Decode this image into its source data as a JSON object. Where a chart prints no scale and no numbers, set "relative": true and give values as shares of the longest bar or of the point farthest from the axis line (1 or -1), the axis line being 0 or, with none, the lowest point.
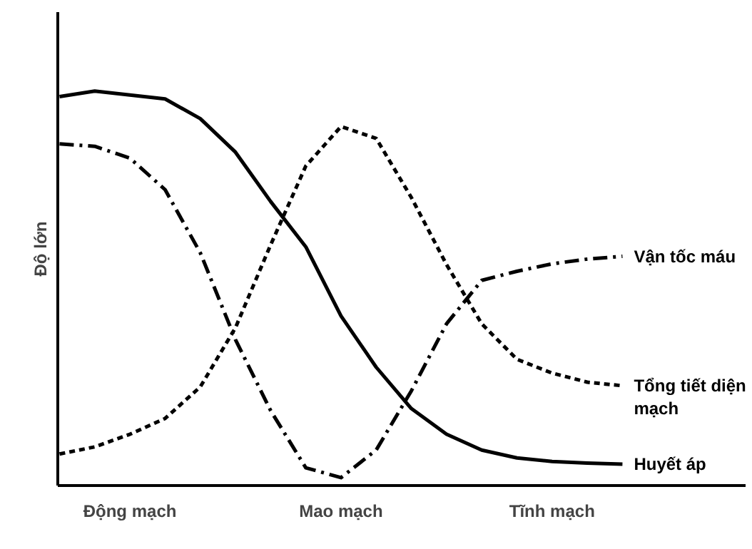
{
  "chart_data": {
    "type": "line",
    "ylabel": "Độ lớn",
    "relative": true,
    "legend": false,
    "marker": "none",
    "categories": [
      null,
      null,
      "Động mạch",
      null,
      null,
      null,
      null,
      null,
      "Mao mạch",
      null,
      null,
      null,
      null,
      null,
      "Tĩnh mạch",
      null,
      null
    ],
    "series": [
      {
        "name": "Vận tốc máu",
        "color": "#000000",
        "line_style": "dashdot",
        "values": [
          0.866,
          0.86,
          0.83,
          0.75,
          0.59,
          0.37,
          0.19,
          0.045,
          0.02,
          0.09,
          0.24,
          0.41,
          0.52,
          0.543,
          0.562,
          0.574,
          0.581
        ]
      },
      {
        "name": "Tổng tiết diện\nmạch",
        "color": "#000000",
        "line_style": "dashed",
        "values": [
          0.08,
          0.098,
          0.13,
          0.17,
          0.25,
          0.4,
          0.61,
          0.81,
          0.91,
          0.88,
          0.73,
          0.56,
          0.41,
          0.32,
          0.285,
          0.262,
          0.253
        ]
      },
      {
        "name": "Huyết áp",
        "color": "#000000",
        "line_style": "solid",
        "values": [
          0.986,
          1,
          0.99,
          0.98,
          0.93,
          0.845,
          0.72,
          0.605,
          0.43,
          0.3,
          0.195,
          0.13,
          0.09,
          0.07,
          0.061,
          0.057,
          0.054
        ]
      }
    ]
  }
}
